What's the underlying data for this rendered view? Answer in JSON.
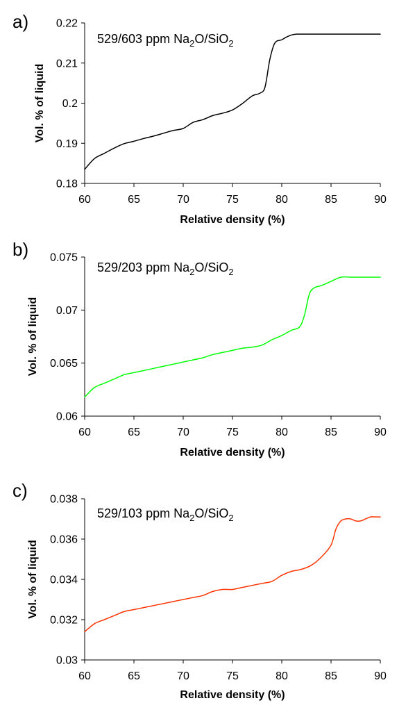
{
  "chart_data": [
    {
      "type": "line",
      "panel_label": "a)",
      "title": {
        "pre": "529/603 ppm Na",
        "sub1": "2",
        "mid": "O/SiO",
        "sub2": "2"
      },
      "xlabel": "Relative density (%)",
      "ylabel": "Vol. % of liquid",
      "xlim": [
        60,
        90
      ],
      "ylim": [
        0.18,
        0.22
      ],
      "xticks": [
        60,
        65,
        70,
        75,
        80,
        85,
        90
      ],
      "yticks": [
        "0.18",
        "0.19",
        "0.2",
        "0.21",
        "0.22"
      ],
      "color": "#000000",
      "series": [
        {
          "x": [
            60,
            61,
            62,
            63,
            64,
            65,
            66,
            67,
            68,
            69,
            70,
            71,
            72,
            73,
            74,
            75,
            76,
            77,
            77.8,
            78.3,
            78.8,
            79.3,
            80,
            80.5,
            81,
            81.5,
            82,
            84,
            86,
            88,
            90
          ],
          "y": [
            0.1835,
            0.1862,
            0.1875,
            0.1888,
            0.1899,
            0.1905,
            0.1912,
            0.1918,
            0.1925,
            0.1932,
            0.1937,
            0.1952,
            0.1959,
            0.1969,
            0.1975,
            0.1983,
            0.1999,
            0.2018,
            0.2025,
            0.204,
            0.211,
            0.215,
            0.2158,
            0.2165,
            0.217,
            0.2172,
            0.2172,
            0.2172,
            0.2172,
            0.2172,
            0.2172
          ]
        }
      ]
    },
    {
      "type": "line",
      "panel_label": "b)",
      "title": {
        "pre": "529/203 ppm Na",
        "sub1": "2",
        "mid": "O/SiO",
        "sub2": "2"
      },
      "xlabel": "Relative density (%)",
      "ylabel": "Vol. % of liquid",
      "xlim": [
        60,
        90
      ],
      "ylim": [
        0.06,
        0.075
      ],
      "xticks": [
        60,
        65,
        70,
        75,
        80,
        85,
        90
      ],
      "yticks": [
        "0.06",
        "0.065",
        "0.07",
        "0.075"
      ],
      "color": "#00ff00",
      "series": [
        {
          "x": [
            60,
            61,
            62,
            63,
            64,
            65,
            66,
            67,
            68,
            69,
            70,
            71,
            72,
            73,
            74,
            75,
            76,
            77,
            78,
            79,
            80,
            81,
            81.8,
            82.3,
            82.8,
            83.3,
            84,
            85,
            86,
            87,
            88,
            90
          ],
          "y": [
            0.0618,
            0.0627,
            0.0631,
            0.0635,
            0.0639,
            0.0641,
            0.0643,
            0.0645,
            0.0647,
            0.0649,
            0.0651,
            0.0653,
            0.0655,
            0.0658,
            0.066,
            0.0662,
            0.0664,
            0.0665,
            0.0667,
            0.0672,
            0.0676,
            0.0681,
            0.0684,
            0.0695,
            0.0715,
            0.0721,
            0.0723,
            0.0727,
            0.0731,
            0.0731,
            0.0731,
            0.0731
          ]
        }
      ]
    },
    {
      "type": "line",
      "panel_label": "c)",
      "title": {
        "pre": "529/103 ppm Na",
        "sub1": "2",
        "mid": "O/SiO",
        "sub2": "2"
      },
      "xlabel": "Relative density (%)",
      "ylabel": "Vol. % of liquid",
      "xlim": [
        60,
        90
      ],
      "ylim": [
        0.03,
        0.038
      ],
      "xticks": [
        60,
        65,
        70,
        75,
        80,
        85,
        90
      ],
      "yticks": [
        "0.03",
        "0.032",
        "0.034",
        "0.036",
        "0.038"
      ],
      "color": "#ff3300",
      "series": [
        {
          "x": [
            60,
            61,
            62,
            63,
            64,
            65,
            66,
            67,
            68,
            69,
            70,
            71,
            72,
            73,
            74,
            75,
            76,
            77,
            78,
            79,
            80,
            81,
            82,
            83,
            84,
            85,
            85.5,
            86,
            86.5,
            87,
            87.5,
            88,
            88.5,
            89,
            89.5,
            90
          ],
          "y": [
            0.0314,
            0.0318,
            0.032,
            0.0322,
            0.0324,
            0.0325,
            0.0326,
            0.0327,
            0.0328,
            0.0329,
            0.033,
            0.0331,
            0.0332,
            0.0334,
            0.0335,
            0.0335,
            0.0336,
            0.0337,
            0.0338,
            0.0339,
            0.0342,
            0.0344,
            0.0345,
            0.0347,
            0.0351,
            0.0357,
            0.0365,
            0.0369,
            0.037,
            0.037,
            0.0369,
            0.0369,
            0.037,
            0.0371,
            0.0371,
            0.0371
          ]
        }
      ]
    }
  ]
}
